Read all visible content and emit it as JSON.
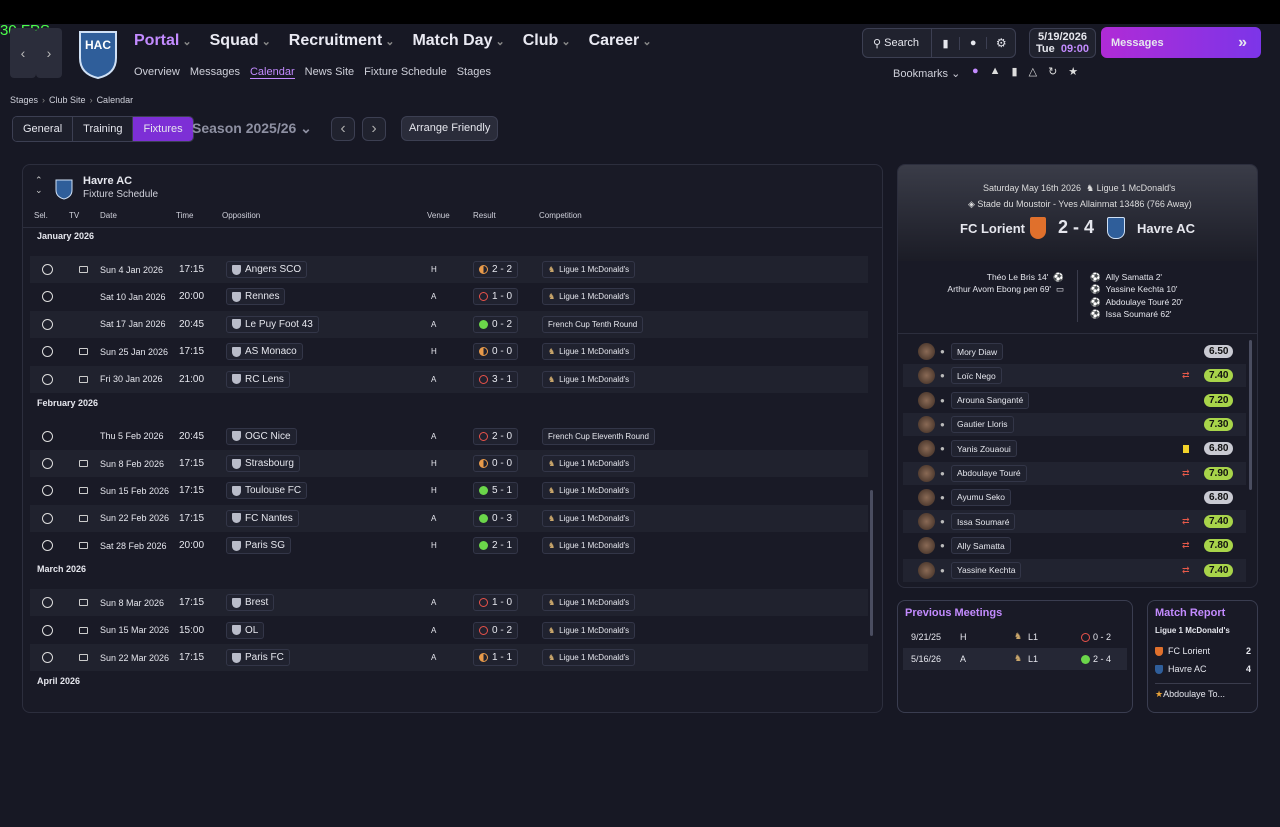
{
  "fps": "30 FPS",
  "header": {
    "badge": "HAC",
    "nav": [
      "Portal",
      "Squad",
      "Recruitment",
      "Match Day",
      "Club",
      "Career"
    ],
    "subnav": [
      "Overview",
      "Messages",
      "Calendar",
      "News Site",
      "Fixture Schedule",
      "Stages"
    ],
    "active_subnav": 2,
    "search": "Search",
    "date": "5/19/2026",
    "day": "Tue",
    "time": "09:00",
    "messages": "Messages",
    "bookmarks": "Bookmarks"
  },
  "breadcrumb": [
    "Stages",
    "Club Site",
    "Calendar"
  ],
  "tabs": [
    "General",
    "Training",
    "Fixtures"
  ],
  "active_tab": 2,
  "season": "Season 2025/26",
  "arrange": "Arrange Friendly",
  "schedule": {
    "team": "Havre AC",
    "subtitle": "Fixture Schedule",
    "columns": [
      "Sel.",
      "TV",
      "Date",
      "Time",
      "Opposition",
      "Venue",
      "Result",
      "Competition"
    ],
    "months": [
      {
        "name": "January 2026",
        "fixtures": [
          {
            "tv": true,
            "date": "Sun 4 Jan 2026",
            "time": "17:15",
            "opposition": "Angers SCO",
            "venue": "H",
            "result": "2 - 2",
            "outcome": "draw",
            "competition": "Ligue 1 McDonald's",
            "league": true
          },
          {
            "tv": false,
            "date": "Sat 10 Jan 2026",
            "time": "20:00",
            "opposition": "Rennes",
            "venue": "A",
            "result": "1 - 0",
            "outcome": "loss",
            "competition": "Ligue 1 McDonald's",
            "league": true
          },
          {
            "tv": false,
            "date": "Sat 17 Jan 2026",
            "time": "20:45",
            "opposition": "Le Puy Foot 43",
            "venue": "A",
            "result": "0 - 2",
            "outcome": "win",
            "competition": "French Cup Tenth Round",
            "league": false
          },
          {
            "tv": true,
            "date": "Sun 25 Jan 2026",
            "time": "17:15",
            "opposition": "AS Monaco",
            "venue": "H",
            "result": "0 - 0",
            "outcome": "draw",
            "competition": "Ligue 1 McDonald's",
            "league": true
          },
          {
            "tv": true,
            "date": "Fri 30 Jan 2026",
            "time": "21:00",
            "opposition": "RC Lens",
            "venue": "A",
            "result": "3 - 1",
            "outcome": "loss",
            "competition": "Ligue 1 McDonald's",
            "league": true
          }
        ]
      },
      {
        "name": "February 2026",
        "fixtures": [
          {
            "tv": false,
            "date": "Thu 5 Feb 2026",
            "time": "20:45",
            "opposition": "OGC Nice",
            "venue": "A",
            "result": "2 - 0",
            "outcome": "loss",
            "competition": "French Cup Eleventh Round",
            "league": false
          },
          {
            "tv": true,
            "date": "Sun 8 Feb 2026",
            "time": "17:15",
            "opposition": "Strasbourg",
            "venue": "H",
            "result": "0 - 0",
            "outcome": "draw",
            "competition": "Ligue 1 McDonald's",
            "league": true
          },
          {
            "tv": true,
            "date": "Sun 15 Feb 2026",
            "time": "17:15",
            "opposition": "Toulouse FC",
            "venue": "H",
            "result": "5 - 1",
            "outcome": "win",
            "competition": "Ligue 1 McDonald's",
            "league": true
          },
          {
            "tv": true,
            "date": "Sun 22 Feb 2026",
            "time": "17:15",
            "opposition": "FC Nantes",
            "venue": "A",
            "result": "0 - 3",
            "outcome": "win",
            "competition": "Ligue 1 McDonald's",
            "league": true
          },
          {
            "tv": true,
            "date": "Sat 28 Feb 2026",
            "time": "20:00",
            "opposition": "Paris SG",
            "venue": "H",
            "result": "2 - 1",
            "outcome": "win",
            "competition": "Ligue 1 McDonald's",
            "league": true
          }
        ]
      },
      {
        "name": "March 2026",
        "fixtures": [
          {
            "tv": true,
            "date": "Sun 8 Mar 2026",
            "time": "17:15",
            "opposition": "Brest",
            "venue": "A",
            "result": "1 - 0",
            "outcome": "loss",
            "competition": "Ligue 1 McDonald's",
            "league": true
          },
          {
            "tv": true,
            "date": "Sun 15 Mar 2026",
            "time": "15:00",
            "opposition": "OL",
            "venue": "A",
            "result": "0 - 2",
            "outcome": "loss",
            "competition": "Ligue 1 McDonald's",
            "league": true
          },
          {
            "tv": true,
            "date": "Sun 22 Mar 2026",
            "time": "17:15",
            "opposition": "Paris FC",
            "venue": "A",
            "result": "1 - 1",
            "outcome": "draw",
            "competition": "Ligue 1 McDonald's",
            "league": true
          }
        ]
      },
      {
        "name": "April 2026",
        "fixtures": []
      }
    ]
  },
  "match": {
    "date": "Saturday May 16th 2026",
    "competition": "Ligue 1 McDonald's",
    "stadium": "Stade du Moustoir - Yves Allainmat",
    "attendance": "13486",
    "away_fans": "(766 Away)",
    "home": "FC Lorient",
    "score": "2 - 4",
    "away": "Havre AC",
    "home_events": [
      {
        "player": "Théo Le Bris",
        "detail": "14'",
        "icon": "goal"
      },
      {
        "player": "Arthur Avom Ebong",
        "detail": "pen 69'",
        "icon": "penalty"
      }
    ],
    "away_events": [
      {
        "player": "Ally Samatta",
        "detail": "2'"
      },
      {
        "player": "Yassine Kechta",
        "detail": "10'"
      },
      {
        "player": "Abdoulaye Touré",
        "detail": "20'"
      },
      {
        "player": "Issa Soumaré",
        "detail": "62'"
      }
    ],
    "ratings": [
      {
        "name": "Mory Diaw",
        "rating": "6.50",
        "icon": null
      },
      {
        "name": "Loïc Nego",
        "rating": "7.40",
        "icon": "sub"
      },
      {
        "name": "Arouna Sanganté",
        "rating": "7.20",
        "icon": null
      },
      {
        "name": "Gautier Lloris",
        "rating": "7.30",
        "icon": null
      },
      {
        "name": "Yanis Zouaoui",
        "rating": "6.80",
        "icon": "card"
      },
      {
        "name": "Abdoulaye Touré",
        "rating": "7.90",
        "icon": "sub"
      },
      {
        "name": "Ayumu Seko",
        "rating": "6.80",
        "icon": null
      },
      {
        "name": "Issa Soumaré",
        "rating": "7.40",
        "icon": "sub"
      },
      {
        "name": "Ally Samatta",
        "rating": "7.80",
        "icon": "sub"
      },
      {
        "name": "Yassine Kechta",
        "rating": "7.40",
        "icon": "sub"
      }
    ]
  },
  "previous_meetings": {
    "title": "Previous Meetings",
    "rows": [
      {
        "date": "9/21/25",
        "venue": "H",
        "competition": "L1",
        "result": "0 - 2",
        "outcome": "loss"
      },
      {
        "date": "5/16/26",
        "venue": "A",
        "competition": "L1",
        "result": "2 - 4",
        "outcome": "win"
      }
    ]
  },
  "match_report": {
    "title": "Match Report",
    "competition": "Ligue 1 McDonald's",
    "teams": [
      {
        "name": "FC Lorient",
        "goals": 2
      },
      {
        "name": "Havre AC",
        "goals": 4
      }
    ],
    "player_of_match": "Abdoulaye To..."
  }
}
